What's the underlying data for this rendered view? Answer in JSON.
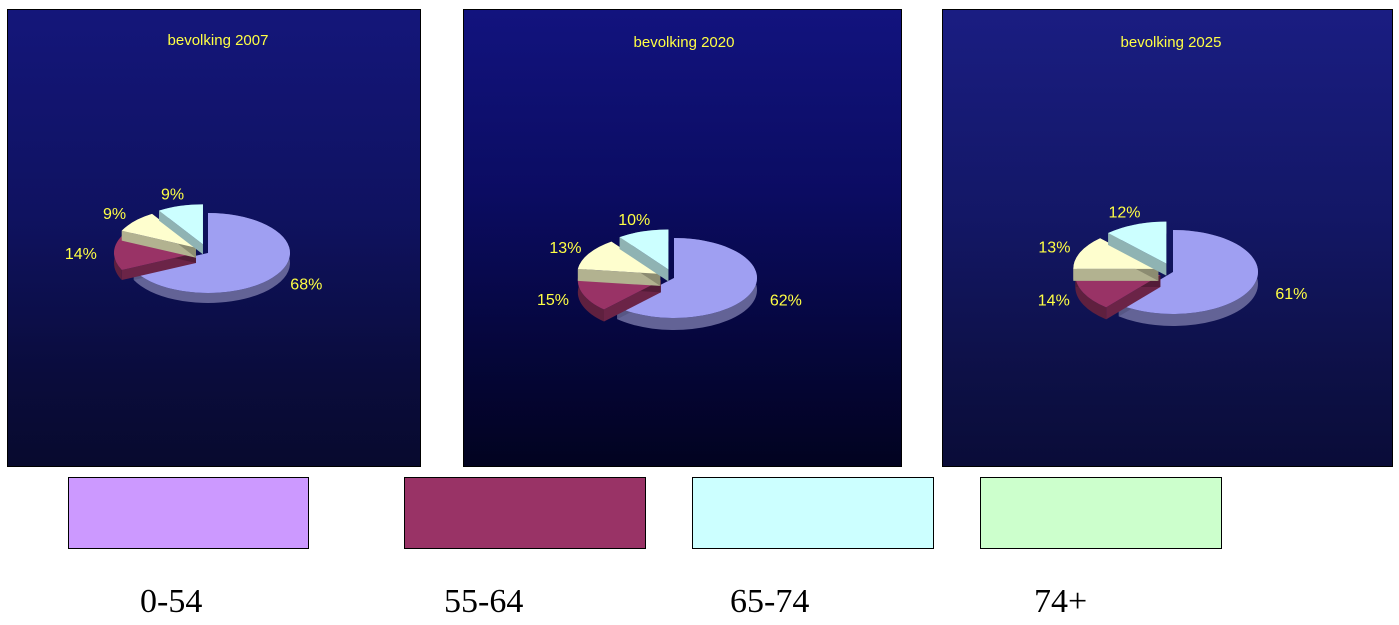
{
  "chart_data": [
    {
      "type": "pie",
      "title": "bevolking 2007",
      "slices": [
        {
          "value": 68,
          "label": "68%",
          "color": "#9f9ff2"
        },
        {
          "value": 14,
          "label": "14%",
          "color": "#993366"
        },
        {
          "value": 9,
          "label": "9%",
          "color": "#fefece"
        },
        {
          "value": 9,
          "label": "9%",
          "color": "#ccffff"
        }
      ]
    },
    {
      "type": "pie",
      "title": "bevolking 2020",
      "slices": [
        {
          "value": 62,
          "label": "62%",
          "color": "#9f9ff2"
        },
        {
          "value": 15,
          "label": "15%",
          "color": "#993366"
        },
        {
          "value": 13,
          "label": "13%",
          "color": "#fefece"
        },
        {
          "value": 10,
          "label": "10%",
          "color": "#ccffff"
        }
      ]
    },
    {
      "type": "pie",
      "title": "bevolking 2025",
      "slices": [
        {
          "value": 61,
          "label": "61%",
          "color": "#9f9ff2"
        },
        {
          "value": 14,
          "label": "14%",
          "color": "#993366"
        },
        {
          "value": 13,
          "label": "13%",
          "color": "#fefece"
        },
        {
          "value": 12,
          "label": "12%",
          "color": "#ccffff"
        }
      ]
    }
  ],
  "legend": [
    {
      "label": "0-54",
      "color": "#cc99ff"
    },
    {
      "label": "55-64",
      "color": "#993366"
    },
    {
      "label": "65-74",
      "color": "#ccffff"
    },
    {
      "label": "74+",
      "color": "#ccffcc"
    }
  ]
}
